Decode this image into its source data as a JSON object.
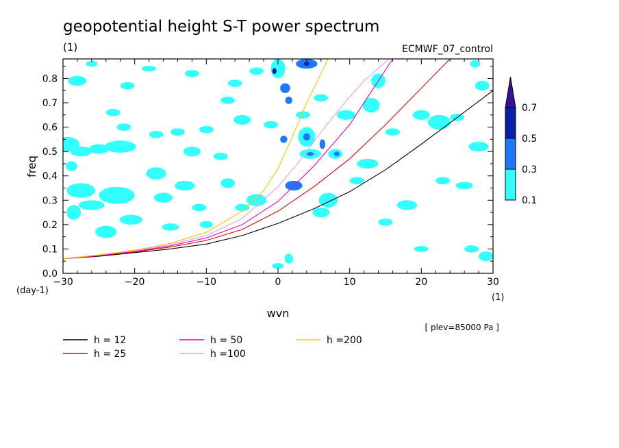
{
  "chart_data": {
    "type": "contour",
    "title": "geopotential height S-T power spectrum",
    "subtitle": "(1)",
    "run_label": "ECMWF_07_control",
    "xlabel": "wvn",
    "x_unit": "(1)",
    "ylabel": "freq",
    "y_unit": "(day-1)",
    "footnote": "[ plev=85000 Pa ]",
    "xlim": [
      -30,
      30
    ],
    "ylim": [
      0,
      0.88
    ],
    "x_ticks": [
      "-30",
      "-20",
      "-10",
      "0",
      "10",
      "20",
      "30"
    ],
    "y_ticks": [
      "0.0",
      "0.1",
      "0.2",
      "0.3",
      "0.4",
      "0.5",
      "0.6",
      "0.7",
      "0.8"
    ],
    "colorbar": {
      "levels": [
        "0.1",
        "0.3",
        "0.5",
        "0.7"
      ],
      "colors": [
        "#33ffff",
        "#1e78ff",
        "#0a1eaa",
        "#3c0f96"
      ]
    },
    "series": [
      {
        "name": "h = 12",
        "color": "#000000",
        "x": [
          -30,
          -25,
          -20,
          -15,
          -10,
          -5,
          0,
          5,
          10,
          15,
          20,
          25,
          30
        ],
        "y": [
          0.06,
          0.07,
          0.085,
          0.1,
          0.12,
          0.155,
          0.205,
          0.265,
          0.335,
          0.425,
          0.53,
          0.64,
          0.75
        ]
      },
      {
        "name": "h = 25",
        "color": "#e00000",
        "x": [
          -30,
          -25,
          -20,
          -15,
          -10,
          -5,
          0,
          5,
          10,
          15,
          20,
          24
        ],
        "y": [
          0.06,
          0.072,
          0.088,
          0.108,
          0.135,
          0.18,
          0.255,
          0.355,
          0.47,
          0.61,
          0.76,
          0.88
        ]
      },
      {
        "name": "h = 50",
        "color": "#e000c0",
        "x": [
          -30,
          -25,
          -20,
          -15,
          -10,
          -5,
          0,
          5,
          10,
          16
        ],
        "y": [
          0.06,
          0.073,
          0.09,
          0.113,
          0.145,
          0.2,
          0.295,
          0.44,
          0.61,
          0.88
        ]
      },
      {
        "name": "h =100",
        "color": "#e6a0e6",
        "x": [
          -30,
          -25,
          -20,
          -15,
          -10,
          -5,
          0,
          3,
          6,
          9,
          12,
          15.5
        ],
        "y": [
          0.06,
          0.075,
          0.093,
          0.118,
          0.155,
          0.225,
          0.355,
          0.46,
          0.58,
          0.69,
          0.79,
          0.88
        ]
      },
      {
        "name": "h =200",
        "color": "#f0c800",
        "x": [
          -30,
          -25,
          -20,
          -15,
          -10,
          -5,
          -2,
          0,
          2,
          4,
          6,
          7
        ],
        "y": [
          0.06,
          0.076,
          0.095,
          0.123,
          0.168,
          0.255,
          0.34,
          0.43,
          0.56,
          0.7,
          0.82,
          0.88
        ]
      }
    ],
    "contour_blobs": [
      {
        "x": -29.5,
        "y": 0.53,
        "rx": 1.8,
        "ry": 0.03,
        "level": 0
      },
      {
        "x": -27.5,
        "y": 0.5,
        "rx": 1.5,
        "ry": 0.02,
        "level": 0
      },
      {
        "x": -25,
        "y": 0.51,
        "rx": 1.4,
        "ry": 0.02,
        "level": 0
      },
      {
        "x": -22,
        "y": 0.52,
        "rx": 2.2,
        "ry": 0.025,
        "level": 0
      },
      {
        "x": -27.5,
        "y": 0.34,
        "rx": 2.0,
        "ry": 0.03,
        "level": 0
      },
      {
        "x": -22.5,
        "y": 0.32,
        "rx": 2.5,
        "ry": 0.035,
        "level": 0
      },
      {
        "x": -26,
        "y": 0.28,
        "rx": 1.8,
        "ry": 0.02,
        "level": 0
      },
      {
        "x": -24,
        "y": 0.17,
        "rx": 1.5,
        "ry": 0.025,
        "level": 0
      },
      {
        "x": -20.5,
        "y": 0.22,
        "rx": 1.6,
        "ry": 0.02,
        "level": 0
      },
      {
        "x": -28.5,
        "y": 0.25,
        "rx": 1.0,
        "ry": 0.03,
        "level": 0
      },
      {
        "x": -28.8,
        "y": 0.44,
        "rx": 0.8,
        "ry": 0.02,
        "level": 0
      },
      {
        "x": -17,
        "y": 0.41,
        "rx": 1.4,
        "ry": 0.025,
        "level": 0
      },
      {
        "x": -16,
        "y": 0.31,
        "rx": 1.3,
        "ry": 0.02,
        "level": 0
      },
      {
        "x": -13,
        "y": 0.36,
        "rx": 1.4,
        "ry": 0.02,
        "level": 0
      },
      {
        "x": -17,
        "y": 0.57,
        "rx": 1.0,
        "ry": 0.015,
        "level": 0
      },
      {
        "x": -23,
        "y": 0.66,
        "rx": 1.0,
        "ry": 0.015,
        "level": 0
      },
      {
        "x": -21.5,
        "y": 0.6,
        "rx": 1.0,
        "ry": 0.015,
        "level": 0
      },
      {
        "x": -28,
        "y": 0.79,
        "rx": 1.3,
        "ry": 0.02,
        "level": 0
      },
      {
        "x": -21,
        "y": 0.77,
        "rx": 1.0,
        "ry": 0.015,
        "level": 0
      },
      {
        "x": -14,
        "y": 0.58,
        "rx": 1.0,
        "ry": 0.015,
        "level": 0
      },
      {
        "x": -10,
        "y": 0.59,
        "rx": 1.0,
        "ry": 0.015,
        "level": 0
      },
      {
        "x": -12,
        "y": 0.5,
        "rx": 1.2,
        "ry": 0.02,
        "level": 0
      },
      {
        "x": -8,
        "y": 0.48,
        "rx": 1.0,
        "ry": 0.015,
        "level": 0
      },
      {
        "x": -5,
        "y": 0.63,
        "rx": 1.2,
        "ry": 0.02,
        "level": 0
      },
      {
        "x": -6,
        "y": 0.78,
        "rx": 1.0,
        "ry": 0.015,
        "level": 0
      },
      {
        "x": -3,
        "y": 0.83,
        "rx": 1.0,
        "ry": 0.015,
        "level": 0
      },
      {
        "x": -7,
        "y": 0.37,
        "rx": 1.0,
        "ry": 0.02,
        "level": 0
      },
      {
        "x": -11,
        "y": 0.27,
        "rx": 1.0,
        "ry": 0.015,
        "level": 0
      },
      {
        "x": -5,
        "y": 0.27,
        "rx": 1.0,
        "ry": 0.015,
        "level": 0
      },
      {
        "x": -3,
        "y": 0.3,
        "rx": 1.4,
        "ry": 0.025,
        "level": 0
      },
      {
        "x": -15,
        "y": 0.19,
        "rx": 1.2,
        "ry": 0.015,
        "level": 0
      },
      {
        "x": -10,
        "y": 0.2,
        "rx": 0.9,
        "ry": 0.015,
        "level": 0
      },
      {
        "x": 0,
        "y": 0.84,
        "rx": 1.0,
        "ry": 0.04,
        "level": 0
      },
      {
        "x": -0.5,
        "y": 0.83,
        "rx": 0.3,
        "ry": 0.012,
        "level": 2
      },
      {
        "x": 4,
        "y": 0.86,
        "rx": 1.5,
        "ry": 0.02,
        "level": 1
      },
      {
        "x": 4,
        "y": 0.86,
        "rx": 0.4,
        "ry": 0.008,
        "level": 2
      },
      {
        "x": 1,
        "y": 0.76,
        "rx": 0.7,
        "ry": 0.02,
        "level": 1
      },
      {
        "x": 1.5,
        "y": 0.71,
        "rx": 0.5,
        "ry": 0.015,
        "level": 1
      },
      {
        "x": 6,
        "y": 0.72,
        "rx": 1.0,
        "ry": 0.015,
        "level": 0
      },
      {
        "x": 3.5,
        "y": 0.65,
        "rx": 1.0,
        "ry": 0.015,
        "level": 0
      },
      {
        "x": 4,
        "y": 0.56,
        "rx": 1.2,
        "ry": 0.04,
        "level": 0
      },
      {
        "x": 4,
        "y": 0.56,
        "rx": 0.5,
        "ry": 0.015,
        "level": 1
      },
      {
        "x": 4.5,
        "y": 0.49,
        "rx": 1.5,
        "ry": 0.02,
        "level": 0
      },
      {
        "x": 4.5,
        "y": 0.49,
        "rx": 0.5,
        "ry": 0.008,
        "level": 1
      },
      {
        "x": 0.8,
        "y": 0.55,
        "rx": 0.5,
        "ry": 0.015,
        "level": 1
      },
      {
        "x": 2.2,
        "y": 0.36,
        "rx": 1.2,
        "ry": 0.02,
        "level": 1
      },
      {
        "x": 6.2,
        "y": 0.53,
        "rx": 0.4,
        "ry": 0.02,
        "level": 1
      },
      {
        "x": 8,
        "y": 0.49,
        "rx": 1.0,
        "ry": 0.02,
        "level": 0
      },
      {
        "x": 8.2,
        "y": 0.49,
        "rx": 0.4,
        "ry": 0.01,
        "level": 1
      },
      {
        "x": 9.5,
        "y": 0.65,
        "rx": 1.3,
        "ry": 0.02,
        "level": 0
      },
      {
        "x": 14,
        "y": 0.79,
        "rx": 1.0,
        "ry": 0.03,
        "level": 0
      },
      {
        "x": 13,
        "y": 0.69,
        "rx": 1.2,
        "ry": 0.03,
        "level": 0
      },
      {
        "x": 16,
        "y": 0.58,
        "rx": 1.0,
        "ry": 0.015,
        "level": 0
      },
      {
        "x": 12.5,
        "y": 0.45,
        "rx": 1.5,
        "ry": 0.02,
        "level": 0
      },
      {
        "x": 11,
        "y": 0.38,
        "rx": 1.0,
        "ry": 0.015,
        "level": 0
      },
      {
        "x": 7,
        "y": 0.3,
        "rx": 1.3,
        "ry": 0.03,
        "level": 0
      },
      {
        "x": 6,
        "y": 0.25,
        "rx": 1.2,
        "ry": 0.02,
        "level": 0
      },
      {
        "x": 1.5,
        "y": 0.06,
        "rx": 0.6,
        "ry": 0.02,
        "level": 0
      },
      {
        "x": 0,
        "y": 0.03,
        "rx": 0.8,
        "ry": 0.012,
        "level": 0
      },
      {
        "x": 20,
        "y": 0.65,
        "rx": 1.2,
        "ry": 0.02,
        "level": 0
      },
      {
        "x": 22.5,
        "y": 0.62,
        "rx": 1.6,
        "ry": 0.03,
        "level": 0
      },
      {
        "x": 25,
        "y": 0.64,
        "rx": 1.0,
        "ry": 0.015,
        "level": 0
      },
      {
        "x": 28,
        "y": 0.52,
        "rx": 1.4,
        "ry": 0.02,
        "level": 0
      },
      {
        "x": 26,
        "y": 0.36,
        "rx": 1.2,
        "ry": 0.015,
        "level": 0
      },
      {
        "x": 23,
        "y": 0.38,
        "rx": 1.0,
        "ry": 0.015,
        "level": 0
      },
      {
        "x": 18,
        "y": 0.28,
        "rx": 1.4,
        "ry": 0.02,
        "level": 0
      },
      {
        "x": 15,
        "y": 0.21,
        "rx": 1.0,
        "ry": 0.015,
        "level": 0
      },
      {
        "x": 28.5,
        "y": 0.77,
        "rx": 1.0,
        "ry": 0.02,
        "level": 0
      },
      {
        "x": 27.5,
        "y": 0.86,
        "rx": 0.7,
        "ry": 0.015,
        "level": 0
      },
      {
        "x": 29,
        "y": 0.07,
        "rx": 1.0,
        "ry": 0.02,
        "level": 0
      },
      {
        "x": 27,
        "y": 0.1,
        "rx": 1.0,
        "ry": 0.015,
        "level": 0
      },
      {
        "x": 20,
        "y": 0.1,
        "rx": 1.0,
        "ry": 0.012,
        "level": 0
      },
      {
        "x": -1,
        "y": 0.61,
        "rx": 1.0,
        "ry": 0.015,
        "level": 0
      },
      {
        "x": -7,
        "y": 0.71,
        "rx": 1.0,
        "ry": 0.015,
        "level": 0
      },
      {
        "x": -12,
        "y": 0.82,
        "rx": 1.0,
        "ry": 0.015,
        "level": 0
      },
      {
        "x": -18,
        "y": 0.84,
        "rx": 1.0,
        "ry": 0.012,
        "level": 0
      },
      {
        "x": -26,
        "y": 0.86,
        "rx": 0.8,
        "ry": 0.012,
        "level": 0
      }
    ]
  }
}
